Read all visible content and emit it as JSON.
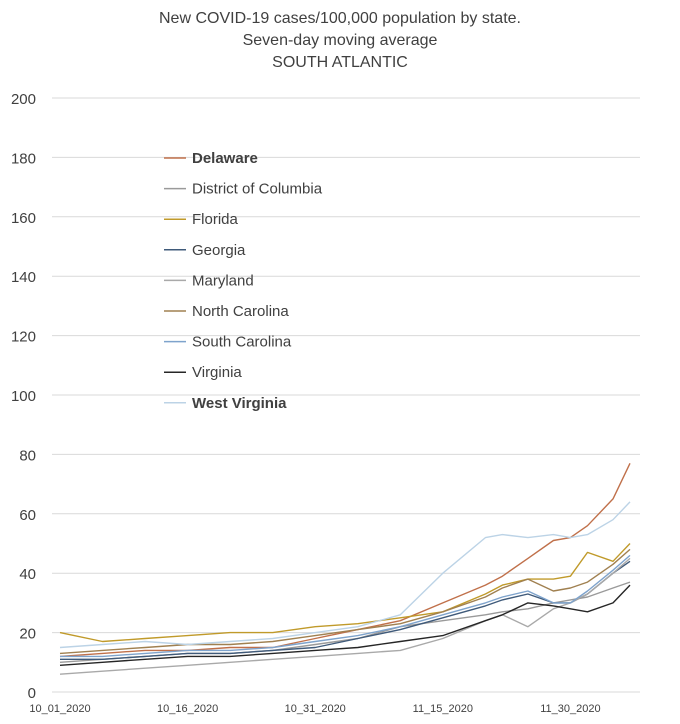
{
  "chart_data": {
    "type": "line",
    "title": "New COVID-19 cases/100,000 population by state.",
    "subtitle": "Seven-day moving average",
    "region": "SOUTH ATLANTIC",
    "xlabel": "",
    "ylabel": "",
    "ylim": [
      0,
      200
    ],
    "yticks": [
      "0",
      "20",
      "40",
      "60",
      "80",
      "100",
      "120",
      "140",
      "160",
      "180",
      "200"
    ],
    "x_tick_labels": [
      "10_01_2020",
      "10_16_2020",
      "10_31_2020",
      "11_15_2020",
      "11_30_2020"
    ],
    "x_tick_days": [
      0,
      15,
      30,
      45,
      60
    ],
    "grid": true,
    "legend_position": "upper-left",
    "x": [
      0,
      5,
      10,
      15,
      20,
      25,
      30,
      35,
      40,
      45,
      50,
      52,
      55,
      58,
      60,
      62,
      65,
      67
    ],
    "series": [
      {
        "name": "Delaware",
        "color": "#c0704a",
        "bold": true,
        "values": [
          12,
          13,
          14,
          14,
          15,
          15,
          18,
          21,
          24,
          30,
          36,
          39,
          45,
          51,
          52,
          56,
          65,
          77
        ]
      },
      {
        "name": "District of Columbia",
        "color": "#9a9a9a",
        "bold": false,
        "values": [
          10,
          11,
          12,
          13,
          13,
          14,
          16,
          18,
          22,
          24,
          26,
          27,
          28,
          30,
          31,
          32,
          35,
          37
        ]
      },
      {
        "name": "Florida",
        "color": "#c09a2a",
        "bold": false,
        "values": [
          20,
          17,
          18,
          19,
          20,
          20,
          22,
          23,
          25,
          27,
          33,
          36,
          38,
          38,
          39,
          47,
          44,
          50
        ]
      },
      {
        "name": "Georgia",
        "color": "#3f5a7a",
        "bold": false,
        "values": [
          11,
          11,
          12,
          13,
          13,
          14,
          15,
          18,
          21,
          25,
          29,
          31,
          33,
          30,
          30,
          33,
          40,
          44
        ]
      },
      {
        "name": "Maryland",
        "color": "#a9a9a9",
        "bold": false,
        "values": [
          6,
          7,
          8,
          9,
          10,
          11,
          12,
          13,
          14,
          18,
          24,
          26,
          22,
          28,
          30,
          33,
          40,
          45
        ]
      },
      {
        "name": "North Carolina",
        "color": "#a08050",
        "bold": false,
        "values": [
          13,
          14,
          15,
          16,
          16,
          17,
          19,
          21,
          23,
          27,
          32,
          35,
          38,
          34,
          35,
          37,
          43,
          48
        ]
      },
      {
        "name": "South Carolina",
        "color": "#7ea3cc",
        "bold": false,
        "values": [
          12,
          12,
          13,
          14,
          14,
          15,
          17,
          19,
          22,
          26,
          30,
          32,
          34,
          30,
          30,
          34,
          41,
          46
        ]
      },
      {
        "name": "Virginia",
        "color": "#262626",
        "bold": false,
        "values": [
          9,
          10,
          11,
          12,
          12,
          13,
          14,
          15,
          17,
          19,
          24,
          26,
          30,
          29,
          28,
          27,
          30,
          36
        ]
      },
      {
        "name": "West Virginia",
        "color": "#bcd3e6",
        "bold": true,
        "values": [
          15,
          16,
          17,
          16,
          17,
          18,
          20,
          22,
          26,
          40,
          52,
          53,
          52,
          53,
          52,
          53,
          58,
          64
        ]
      }
    ]
  }
}
